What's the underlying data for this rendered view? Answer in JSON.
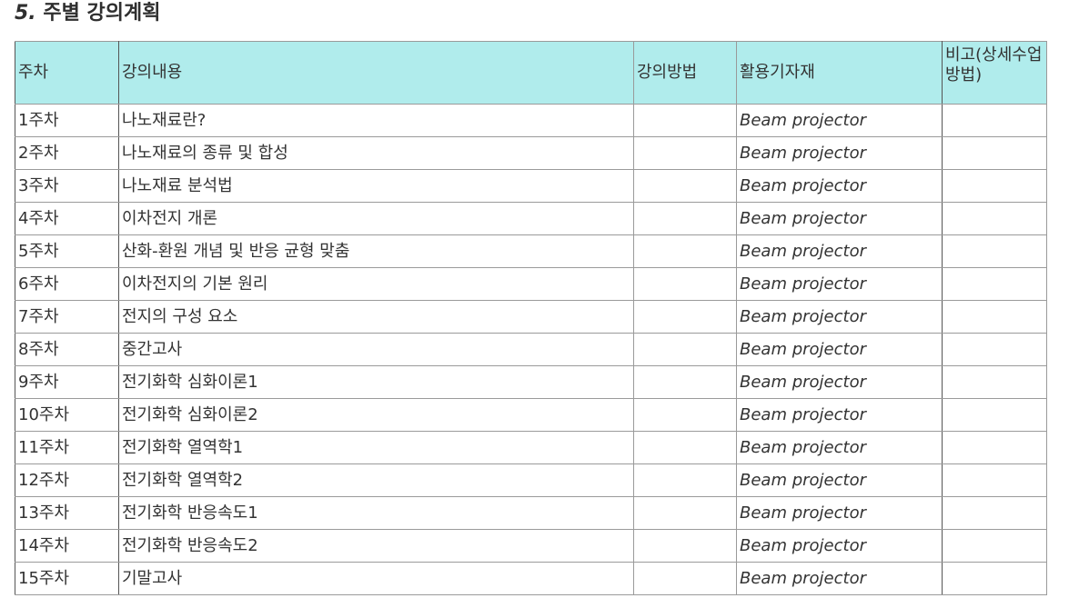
{
  "section": {
    "number": "5.",
    "title": "주별 강의계획"
  },
  "table": {
    "headers": {
      "week": "주차",
      "content": "강의내용",
      "method": "강의방법",
      "tools": "활용기자재",
      "remarks": "비고(상세수업방법)"
    },
    "rows": [
      {
        "week": "1주차",
        "content": "나노재료란?",
        "method": "",
        "tools": "Beam projector",
        "remarks": ""
      },
      {
        "week": "2주차",
        "content": "나노재료의 종류 및 합성",
        "method": "",
        "tools": "Beam projector",
        "remarks": ""
      },
      {
        "week": "3주차",
        "content": "나노재료 분석법",
        "method": "",
        "tools": "Beam projector",
        "remarks": ""
      },
      {
        "week": "4주차",
        "content": "이차전지 개론",
        "method": "",
        "tools": "Beam projector",
        "remarks": ""
      },
      {
        "week": "5주차",
        "content": "산화-환원 개념 및 반응 균형 맞춤",
        "method": "",
        "tools": "Beam projector",
        "remarks": ""
      },
      {
        "week": "6주차",
        "content": "이차전지의 기본 원리",
        "method": "",
        "tools": "Beam projector",
        "remarks": ""
      },
      {
        "week": "7주차",
        "content": "전지의 구성 요소",
        "method": "",
        "tools": "Beam projector",
        "remarks": ""
      },
      {
        "week": "8주차",
        "content": "중간고사",
        "method": "",
        "tools": "Beam projector",
        "remarks": ""
      },
      {
        "week": "9주차",
        "content": "전기화학 심화이론1",
        "method": "",
        "tools": "Beam projector",
        "remarks": ""
      },
      {
        "week": "10주차",
        "content": "전기화학 심화이론2",
        "method": "",
        "tools": "Beam projector",
        "remarks": ""
      },
      {
        "week": "11주차",
        "content": "전기화학 열역학1",
        "method": "",
        "tools": "Beam projector",
        "remarks": ""
      },
      {
        "week": "12주차",
        "content": "전기화학 열역학2",
        "method": "",
        "tools": "Beam projector",
        "remarks": ""
      },
      {
        "week": "13주차",
        "content": "전기화학 반응속도1",
        "method": "",
        "tools": "Beam projector",
        "remarks": ""
      },
      {
        "week": "14주차",
        "content": "전기화학 반응속도2",
        "method": "",
        "tools": "Beam projector",
        "remarks": ""
      },
      {
        "week": "15주차",
        "content": "기말고사",
        "method": "",
        "tools": "Beam projector",
        "remarks": ""
      }
    ]
  },
  "colors": {
    "header_bg": "#b0ecec",
    "grid": "#9a9a9a",
    "text": "#333333"
  }
}
